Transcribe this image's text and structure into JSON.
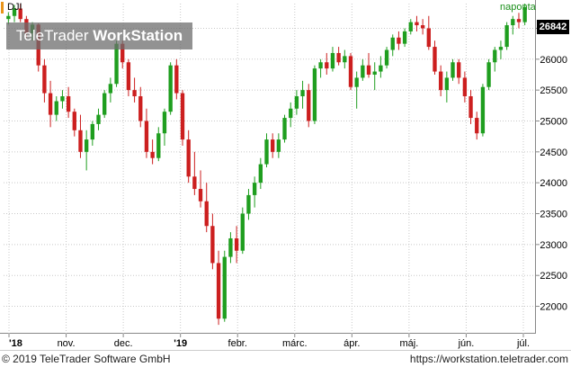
{
  "chart_data": {
    "type": "candlestick",
    "symbol": "DJI",
    "period": "naponta",
    "last_price": "26842",
    "y_ticks": [
      "22000",
      "22500",
      "23000",
      "23500",
      "24000",
      "24500",
      "25000",
      "25500",
      "26000",
      "26500"
    ],
    "ylim": [
      21600,
      26900
    ],
    "x_ticks": [
      "'18",
      "nov.",
      "dec.",
      "'19",
      "febr.",
      "márc.",
      "ápr.",
      "máj.",
      "jún.",
      "júl."
    ],
    "grid": true,
    "colors": {
      "up": "#1f9e1f",
      "down": "#cc1f1f",
      "grid": "#c8c8c8",
      "accent": "#e8941a"
    },
    "candles": [
      [
        26650,
        26760,
        26560,
        26700
      ],
      [
        26700,
        26880,
        26600,
        26820
      ],
      [
        26820,
        26900,
        26600,
        26650
      ],
      [
        26650,
        26700,
        26350,
        26420
      ],
      [
        26420,
        26600,
        26300,
        26560
      ],
      [
        26560,
        26580,
        25800,
        25900
      ],
      [
        25900,
        26000,
        25300,
        25450
      ],
      [
        25450,
        25650,
        24900,
        25100
      ],
      [
        25100,
        25400,
        25000,
        25320
      ],
      [
        25320,
        25500,
        25200,
        25400
      ],
      [
        25400,
        25550,
        25050,
        25150
      ],
      [
        25150,
        25200,
        24750,
        24850
      ],
      [
        24850,
        25100,
        24400,
        24500
      ],
      [
        24500,
        24850,
        24200,
        24700
      ],
      [
        24700,
        25000,
        24600,
        24950
      ],
      [
        24950,
        25200,
        24850,
        25100
      ],
      [
        25100,
        25500,
        25050,
        25450
      ],
      [
        25450,
        25700,
        25300,
        25600
      ],
      [
        25600,
        26300,
        25550,
        26250
      ],
      [
        26250,
        26300,
        25850,
        25950
      ],
      [
        25950,
        26000,
        25400,
        25500
      ],
      [
        25500,
        25700,
        25300,
        25400
      ],
      [
        25400,
        25550,
        24900,
        25000
      ],
      [
        25000,
        25200,
        24400,
        24500
      ],
      [
        24500,
        24700,
        24300,
        24400
      ],
      [
        24400,
        24900,
        24350,
        24800
      ],
      [
        24800,
        25200,
        24600,
        25150
      ],
      [
        25150,
        25950,
        25100,
        25900
      ],
      [
        25900,
        26000,
        25350,
        25450
      ],
      [
        25450,
        25500,
        24600,
        24700
      ],
      [
        24700,
        24850,
        24000,
        24100
      ],
      [
        24100,
        24500,
        23800,
        23900
      ],
      [
        23900,
        24200,
        23600,
        23700
      ],
      [
        23700,
        24000,
        23200,
        23300
      ],
      [
        23300,
        23500,
        22600,
        22700
      ],
      [
        22700,
        22900,
        21700,
        21800
      ],
      [
        21800,
        22900,
        21750,
        22800
      ],
      [
        22800,
        23200,
        22700,
        23100
      ],
      [
        23100,
        23300,
        22700,
        22900
      ],
      [
        22900,
        23600,
        22850,
        23500
      ],
      [
        23500,
        23900,
        23400,
        23800
      ],
      [
        23800,
        24100,
        23600,
        24000
      ],
      [
        24000,
        24400,
        23900,
        24300
      ],
      [
        24300,
        24800,
        24250,
        24700
      ],
      [
        24700,
        24800,
        24400,
        24500
      ],
      [
        24500,
        24800,
        24400,
        24700
      ],
      [
        24700,
        25100,
        24650,
        25050
      ],
      [
        25050,
        25300,
        24900,
        25200
      ],
      [
        25200,
        25500,
        25100,
        25400
      ],
      [
        25400,
        25650,
        25200,
        25500
      ],
      [
        25500,
        25600,
        24900,
        25000
      ],
      [
        25000,
        25900,
        24950,
        25850
      ],
      [
        25850,
        26000,
        25700,
        25950
      ],
      [
        25950,
        26100,
        25750,
        25850
      ],
      [
        25850,
        26200,
        25800,
        26100
      ],
      [
        26100,
        26200,
        25900,
        25950
      ],
      [
        25950,
        26150,
        25850,
        26050
      ],
      [
        26050,
        26100,
        25500,
        25550
      ],
      [
        25550,
        25800,
        25200,
        25700
      ],
      [
        25700,
        26000,
        25650,
        25900
      ],
      [
        25900,
        26100,
        25700,
        25750
      ],
      [
        25750,
        25950,
        25500,
        25800
      ],
      [
        25800,
        26050,
        25700,
        25900
      ],
      [
        25900,
        26200,
        25850,
        26150
      ],
      [
        26150,
        26400,
        26050,
        26350
      ],
      [
        26350,
        26450,
        26150,
        26250
      ],
      [
        26250,
        26500,
        26200,
        26450
      ],
      [
        26450,
        26650,
        26400,
        26600
      ],
      [
        26600,
        26700,
        26450,
        26550
      ],
      [
        26550,
        26650,
        26400,
        26500
      ],
      [
        26500,
        26700,
        26150,
        26200
      ],
      [
        26200,
        26300,
        25750,
        25800
      ],
      [
        25800,
        25900,
        25400,
        25500
      ],
      [
        25500,
        25800,
        25300,
        25700
      ],
      [
        25700,
        26000,
        25650,
        25950
      ],
      [
        25950,
        26000,
        25600,
        25700
      ],
      [
        25700,
        25800,
        25300,
        25400
      ],
      [
        25400,
        25500,
        24950,
        25050
      ],
      [
        25050,
        25150,
        24700,
        24800
      ],
      [
        24800,
        25600,
        24750,
        25550
      ],
      [
        25550,
        26000,
        25500,
        25950
      ],
      [
        25950,
        26200,
        25800,
        26150
      ],
      [
        26150,
        26300,
        26000,
        26200
      ],
      [
        26200,
        26600,
        26150,
        26550
      ],
      [
        26550,
        26700,
        26400,
        26650
      ],
      [
        26650,
        26750,
        26500,
        26600
      ],
      [
        26600,
        26900,
        26550,
        26842
      ]
    ]
  },
  "footer": {
    "copyright": "© 2019 TeleTrader Software GmbH",
    "url": "https://workstation.teletrader.com"
  },
  "brand": {
    "name_a": "TeleTrader",
    "name_b": "WorkStation"
  }
}
